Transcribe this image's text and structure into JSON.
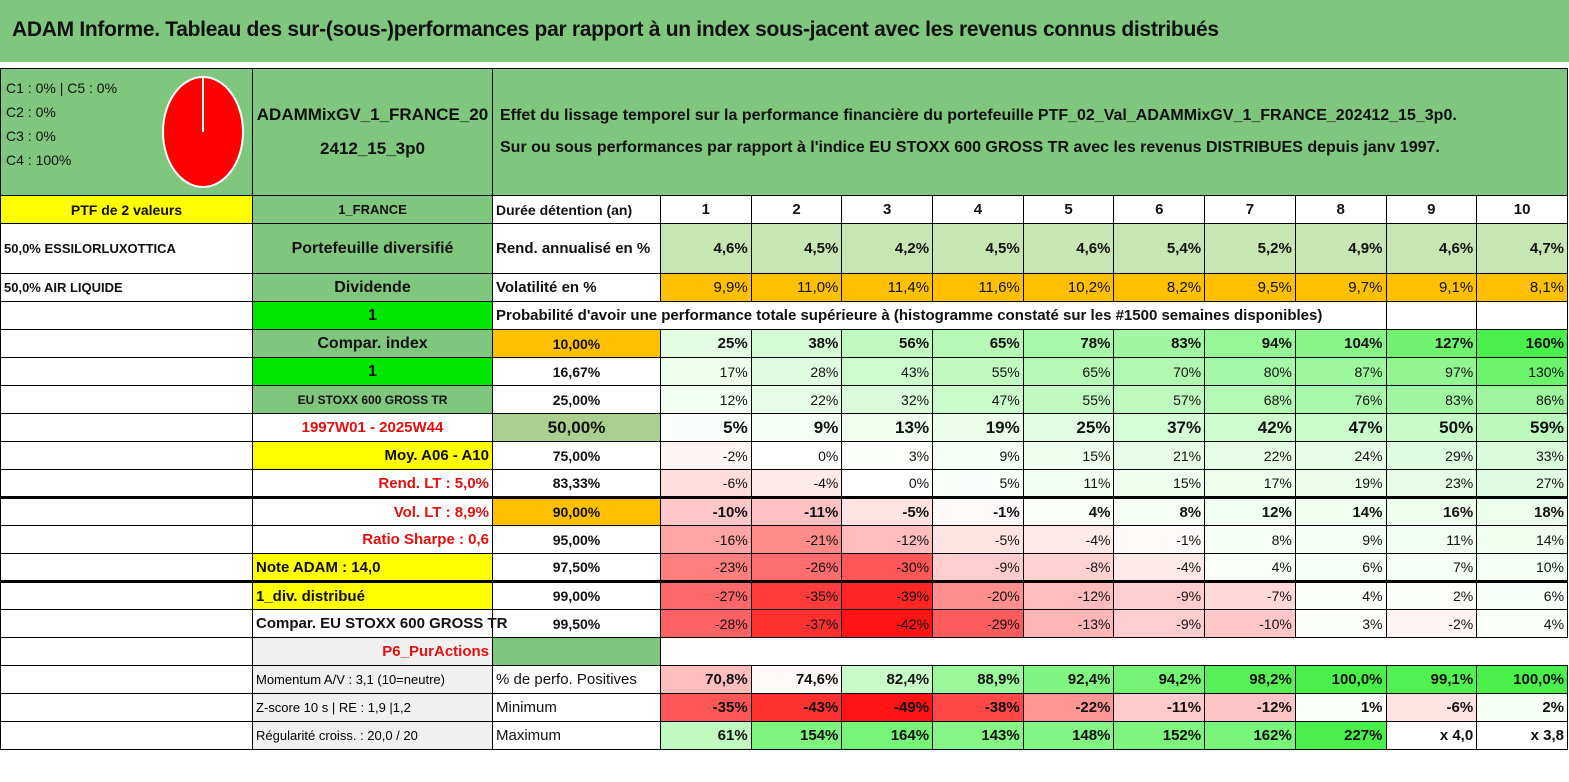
{
  "title": "ADAM Informe. Tableau des sur-(sous-)performances par rapport à un index sous-jacent avec les revenus connus distribués",
  "legend": [
    "C1 : 0% | C5 : 0%",
    "C2 : 0%",
    "C3 : 0%",
    "C4 : 100%"
  ],
  "pie_color": "#ff0000",
  "portfolio_name": "ADAMMixGV_1_FRANCE_202412_15_3p0",
  "description": [
    "Effet du lissage temporel sur la performance financière du portefeuille PTF_02_Val_ADAMMixGV_1_FRANCE_202412_15_3p0.",
    "Sur ou sous performances par rapport à l'indice EU STOXX 600 GROSS TR avec les revenus DISTRIBUES depuis janv 1997."
  ],
  "left": {
    "ptf": "PTF de 2 valeurs",
    "holding1": "50,0% ESSILORLUXOTTICA",
    "holding2": "50,0% AIR LIQUIDE"
  },
  "side": {
    "country": "1_FRANCE",
    "type": "Portefeuille diversifié",
    "dividend": "Dividende",
    "one_a": "1",
    "compar_index": "Compar. index",
    "one_b": "1",
    "index_name": "EU STOXX 600 GROSS TR",
    "period": "1997W01 - 2025W44",
    "moy": "Moy. A06 - A10",
    "rend_lt": "Rend. LT : 5,0%",
    "vol_lt": "Vol. LT : 8,9%",
    "sharpe": "Ratio Sharpe : 0,6",
    "note": "Note ADAM : 14,0",
    "div": "1_div. distribué",
    "compar": "Compar. EU STOXX 600 GROSS TR",
    "profile": "P6_PurActions",
    "momentum": "Momentum A/V : 3,1 (10=neutre)",
    "zscore": "Z-score 10 s | RE : 1,9 |1,2",
    "regularite": "Régularité croiss. : 20,0 / 20"
  },
  "rows": {
    "duree": {
      "label": "Durée détention (an)",
      "values": [
        "1",
        "2",
        "3",
        "4",
        "5",
        "6",
        "7",
        "8",
        "9",
        "10"
      ]
    },
    "rend": {
      "label": "Rend. annualisé en %",
      "values": [
        "4,6%",
        "4,5%",
        "4,2%",
        "4,5%",
        "4,6%",
        "5,4%",
        "5,2%",
        "4,9%",
        "4,6%",
        "4,7%"
      ]
    },
    "vol": {
      "label": "Volatilité en %",
      "values": [
        "9,9%",
        "11,0%",
        "11,4%",
        "11,6%",
        "10,2%",
        "8,2%",
        "9,5%",
        "9,7%",
        "9,1%",
        "8,1%"
      ]
    },
    "prob_label": "Probabilité d'avoir une performance totale supérieure à (histogramme constaté sur les #1500 semaines disponibles)"
  },
  "percentiles": [
    {
      "p": "10,00%",
      "values": [
        "25%",
        "38%",
        "56%",
        "65%",
        "78%",
        "83%",
        "94%",
        "104%",
        "127%",
        "160%"
      ]
    },
    {
      "p": "16,67%",
      "values": [
        "17%",
        "28%",
        "43%",
        "55%",
        "65%",
        "70%",
        "80%",
        "87%",
        "97%",
        "130%"
      ]
    },
    {
      "p": "25,00%",
      "values": [
        "12%",
        "22%",
        "32%",
        "47%",
        "55%",
        "57%",
        "68%",
        "76%",
        "83%",
        "86%"
      ]
    },
    {
      "p": "50,00%",
      "values": [
        "5%",
        "9%",
        "13%",
        "19%",
        "25%",
        "37%",
        "42%",
        "47%",
        "50%",
        "59%"
      ]
    },
    {
      "p": "75,00%",
      "values": [
        "-2%",
        "0%",
        "3%",
        "9%",
        "15%",
        "21%",
        "22%",
        "24%",
        "29%",
        "33%"
      ]
    },
    {
      "p": "83,33%",
      "values": [
        "-6%",
        "-4%",
        "0%",
        "5%",
        "11%",
        "15%",
        "17%",
        "19%",
        "23%",
        "27%"
      ]
    },
    {
      "p": "90,00%",
      "values": [
        "-10%",
        "-11%",
        "-5%",
        "-1%",
        "4%",
        "8%",
        "12%",
        "14%",
        "16%",
        "18%"
      ]
    },
    {
      "p": "95,00%",
      "values": [
        "-16%",
        "-21%",
        "-12%",
        "-5%",
        "-4%",
        "-1%",
        "8%",
        "9%",
        "11%",
        "14%"
      ]
    },
    {
      "p": "97,50%",
      "values": [
        "-23%",
        "-26%",
        "-30%",
        "-9%",
        "-8%",
        "-4%",
        "4%",
        "6%",
        "7%",
        "10%"
      ]
    },
    {
      "p": "99,00%",
      "values": [
        "-27%",
        "-35%",
        "-39%",
        "-20%",
        "-12%",
        "-9%",
        "-7%",
        "4%",
        "2%",
        "6%"
      ]
    },
    {
      "p": "99,50%",
      "values": [
        "-28%",
        "-37%",
        "-42%",
        "-29%",
        "-13%",
        "-9%",
        "-10%",
        "3%",
        "-2%",
        "4%"
      ]
    }
  ],
  "stats": [
    {
      "label": "% de perfo. Positives",
      "values": [
        "70,8%",
        "74,6%",
        "82,4%",
        "88,9%",
        "92,4%",
        "94,2%",
        "98,2%",
        "100,0%",
        "99,1%",
        "100,0%"
      ]
    },
    {
      "label": "Minimum",
      "values": [
        "-35%",
        "-43%",
        "-49%",
        "-38%",
        "-22%",
        "-11%",
        "-12%",
        "1%",
        "-6%",
        "2%"
      ]
    },
    {
      "label": "Maximum",
      "values": [
        "61%",
        "154%",
        "164%",
        "143%",
        "148%",
        "152%",
        "162%",
        "227%",
        "x 4,0",
        "x 3,8"
      ]
    }
  ]
}
